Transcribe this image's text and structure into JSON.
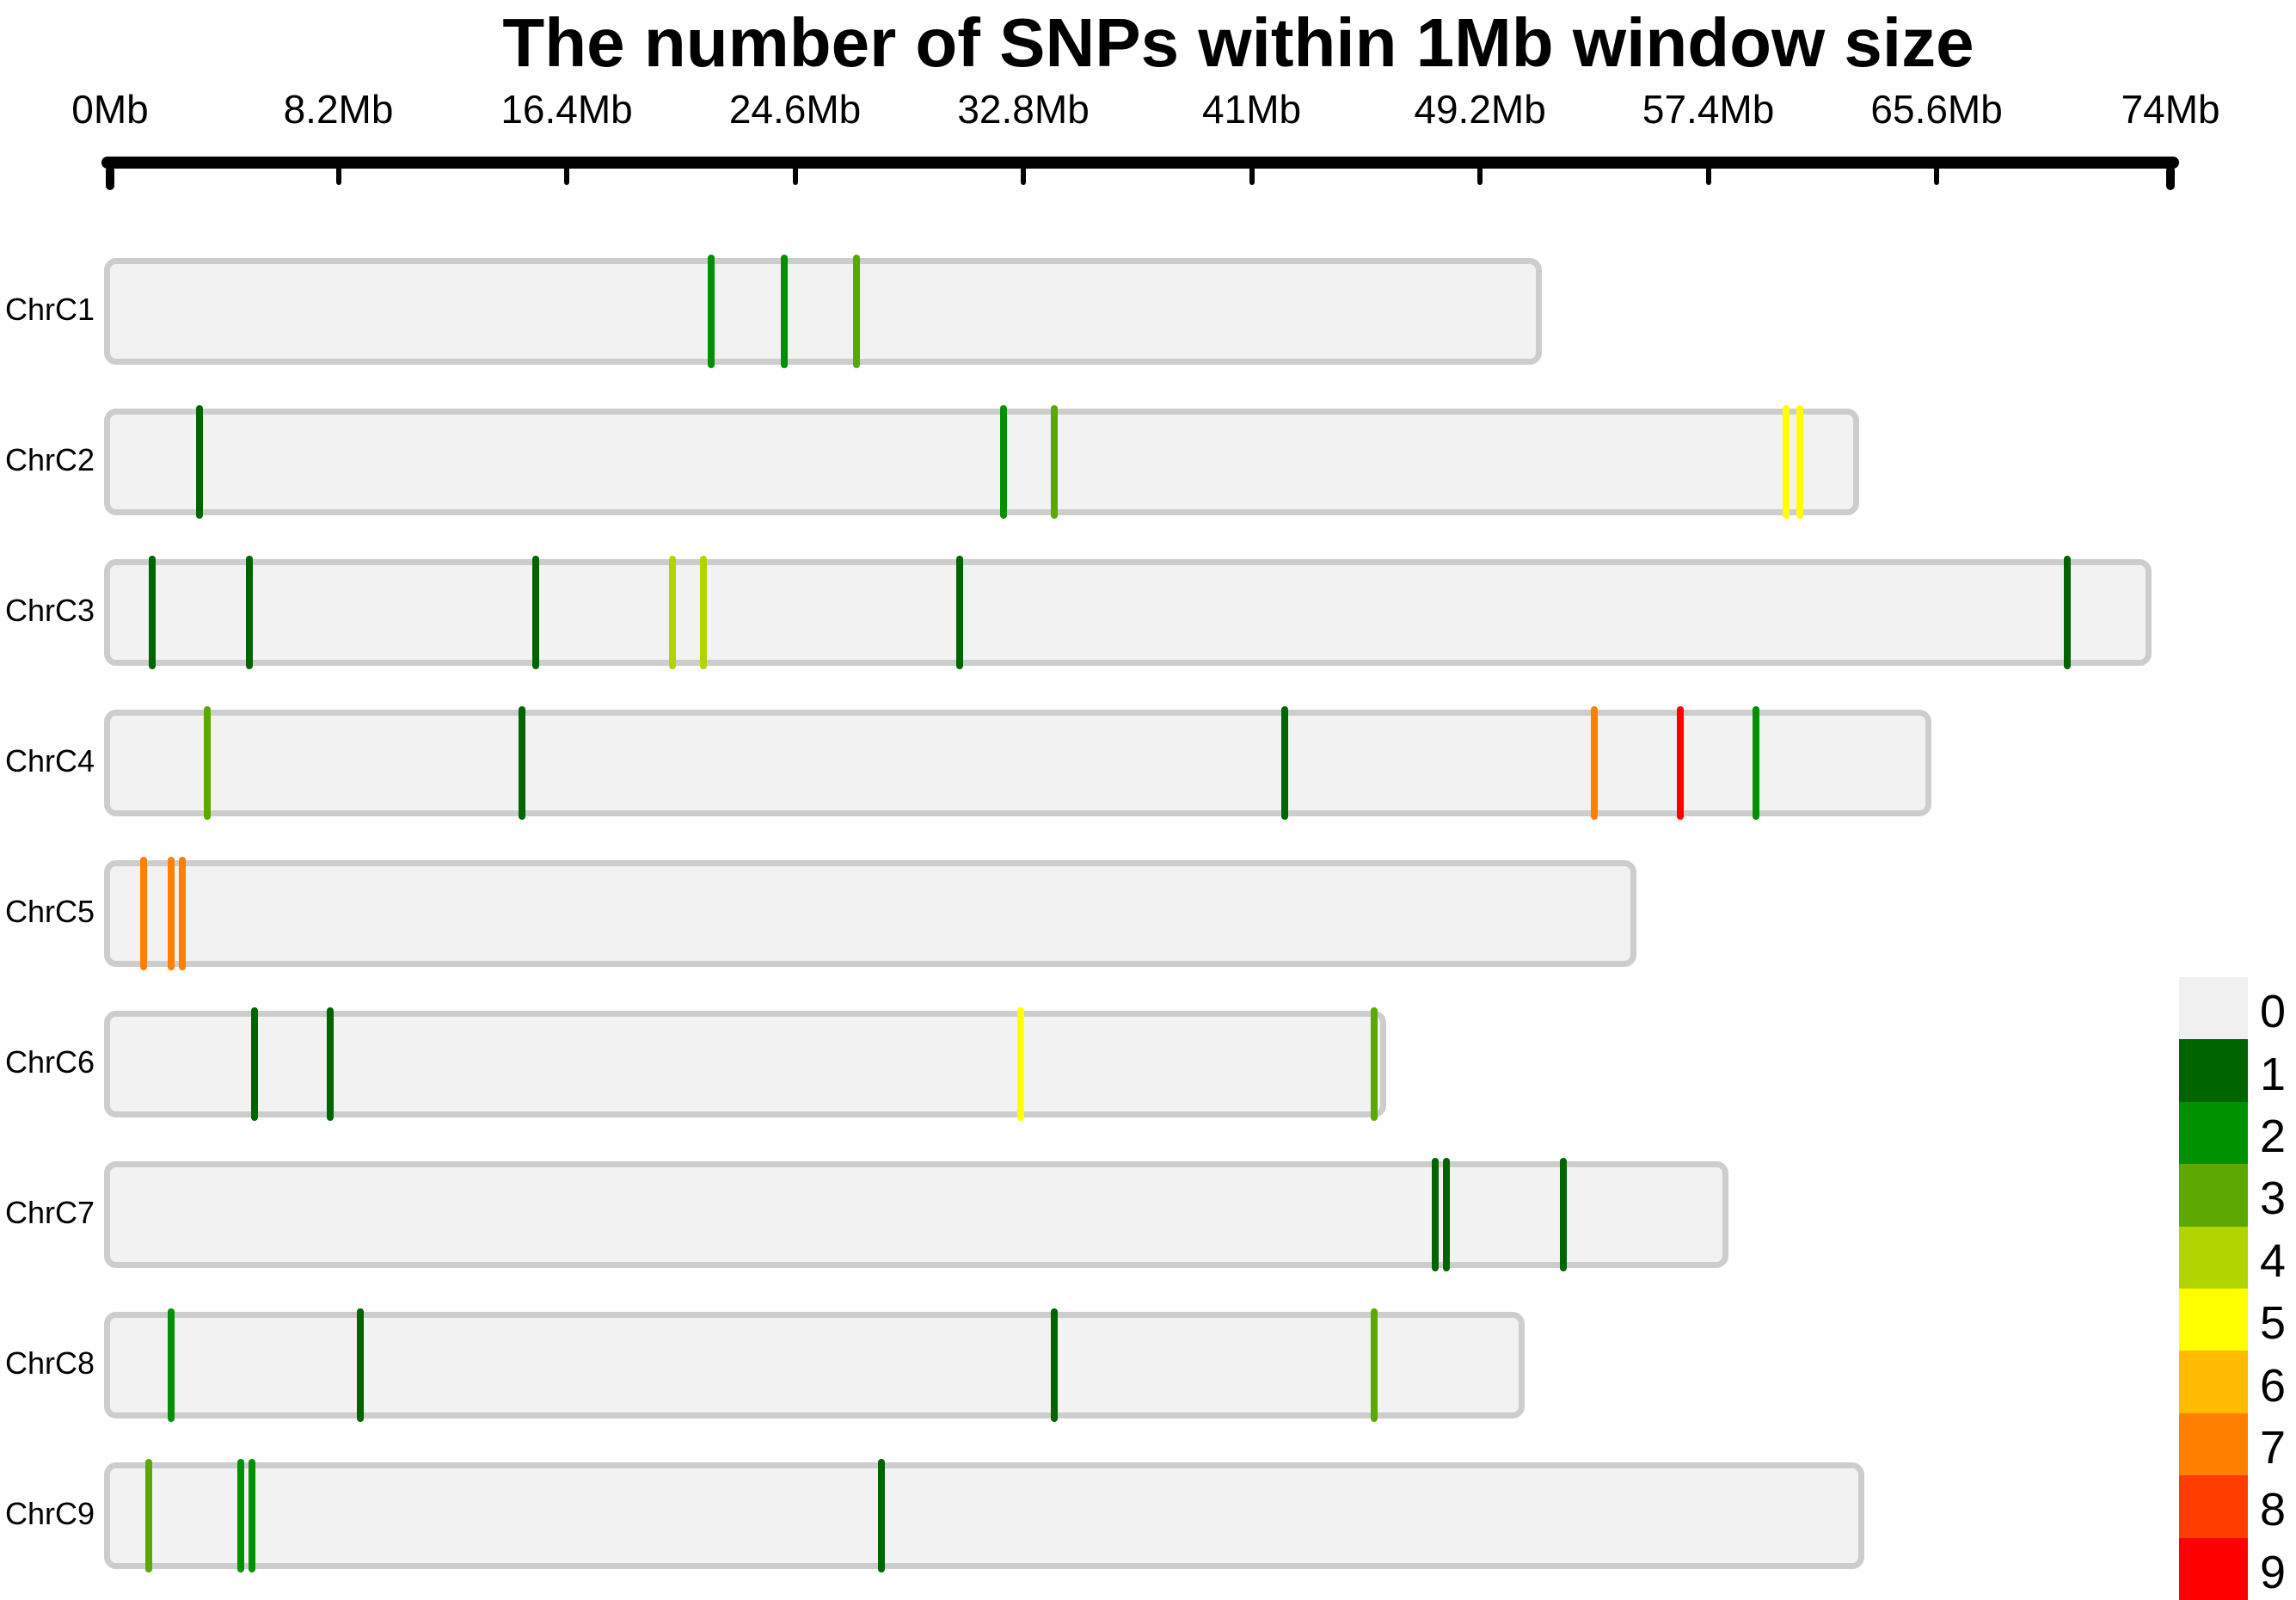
{
  "title": "The number of SNPs within 1Mb window size",
  "axis": {
    "unit": "Mb",
    "ticks": [
      {
        "label": "0Mb",
        "mb": 0
      },
      {
        "label": "8.2Mb",
        "mb": 8.2
      },
      {
        "label": "16.4Mb",
        "mb": 16.4
      },
      {
        "label": "24.6Mb",
        "mb": 24.6
      },
      {
        "label": "32.8Mb",
        "mb": 32.8
      },
      {
        "label": "41Mb",
        "mb": 41
      },
      {
        "label": "49.2Mb",
        "mb": 49.2
      },
      {
        "label": "57.4Mb",
        "mb": 57.4
      },
      {
        "label": "65.6Mb",
        "mb": 65.6
      },
      {
        "label": "74Mb",
        "mb": 74
      }
    ]
  },
  "palette": {
    "0": "#F0F0F0",
    "1": "#006400",
    "2": "#009100",
    "3": "#5CA800",
    "4": "#B2D400",
    "5": "#FFFF00",
    "6": "#FFBB00",
    "7": "#FF7F00",
    "8": "#FF3D00",
    "9": "#FF0000"
  },
  "bar_fill": "#F2F2F2",
  "bar_border": "#CDCDCD",
  "legend": {
    "labels": [
      "0",
      "1",
      "2",
      "3",
      "4",
      "5",
      "6",
      "7",
      "8",
      "9"
    ]
  },
  "chart_data": {
    "type": "heatmap",
    "subtype": "chromosome-snp-density",
    "title": "The number of SNPs within 1Mb window size",
    "window_size": "1Mb",
    "x_unit": "Mb",
    "x_range": [
      0,
      74
    ],
    "legend_values": [
      0,
      1,
      2,
      3,
      4,
      5,
      6,
      7,
      8,
      9
    ],
    "legend_position": "bottom-right",
    "chromosomes": [
      {
        "name": "ChrC1",
        "length_mb": 51.2,
        "markers": [
          {
            "pos_mb": 21.6,
            "count": 2
          },
          {
            "pos_mb": 24.2,
            "count": 2
          },
          {
            "pos_mb": 26.8,
            "count": 3
          }
        ]
      },
      {
        "name": "ChrC2",
        "length_mb": 62.6,
        "markers": [
          {
            "pos_mb": 3.2,
            "count": 1
          },
          {
            "pos_mb": 32.1,
            "count": 2
          },
          {
            "pos_mb": 33.9,
            "count": 3
          },
          {
            "pos_mb": 60.2,
            "count": 5
          },
          {
            "pos_mb": 60.7,
            "count": 5
          }
        ]
      },
      {
        "name": "ChrC3",
        "length_mb": 73.1,
        "markers": [
          {
            "pos_mb": 1.5,
            "count": 1
          },
          {
            "pos_mb": 5.0,
            "count": 1
          },
          {
            "pos_mb": 15.3,
            "count": 1
          },
          {
            "pos_mb": 20.2,
            "count": 4
          },
          {
            "pos_mb": 21.3,
            "count": 4
          },
          {
            "pos_mb": 30.5,
            "count": 1
          },
          {
            "pos_mb": 70.3,
            "count": 1
          }
        ]
      },
      {
        "name": "ChrC4",
        "length_mb": 65.2,
        "markers": [
          {
            "pos_mb": 3.5,
            "count": 3
          },
          {
            "pos_mb": 14.8,
            "count": 1
          },
          {
            "pos_mb": 42.2,
            "count": 1
          },
          {
            "pos_mb": 53.3,
            "count": 7
          },
          {
            "pos_mb": 56.4,
            "count": 9
          },
          {
            "pos_mb": 59.1,
            "count": 2
          }
        ]
      },
      {
        "name": "ChrC5",
        "length_mb": 54.6,
        "markers": [
          {
            "pos_mb": 1.2,
            "count": 7
          },
          {
            "pos_mb": 2.2,
            "count": 7
          },
          {
            "pos_mb": 2.6,
            "count": 7
          }
        ]
      },
      {
        "name": "ChrC6",
        "length_mb": 45.6,
        "markers": [
          {
            "pos_mb": 5.2,
            "count": 1
          },
          {
            "pos_mb": 7.9,
            "count": 1
          },
          {
            "pos_mb": 32.7,
            "count": 5
          },
          {
            "pos_mb": 45.4,
            "count": 3
          }
        ]
      },
      {
        "name": "ChrC7",
        "length_mb": 57.9,
        "markers": [
          {
            "pos_mb": 47.6,
            "count": 1
          },
          {
            "pos_mb": 48.0,
            "count": 1
          },
          {
            "pos_mb": 52.2,
            "count": 1
          }
        ]
      },
      {
        "name": "ChrC8",
        "length_mb": 50.6,
        "markers": [
          {
            "pos_mb": 2.2,
            "count": 2
          },
          {
            "pos_mb": 9.0,
            "count": 1
          },
          {
            "pos_mb": 33.9,
            "count": 1
          },
          {
            "pos_mb": 45.4,
            "count": 3
          }
        ]
      },
      {
        "name": "ChrC9",
        "length_mb": 62.8,
        "markers": [
          {
            "pos_mb": 1.4,
            "count": 3
          },
          {
            "pos_mb": 4.7,
            "count": 2
          },
          {
            "pos_mb": 5.1,
            "count": 2
          },
          {
            "pos_mb": 27.7,
            "count": 1
          }
        ]
      }
    ]
  }
}
